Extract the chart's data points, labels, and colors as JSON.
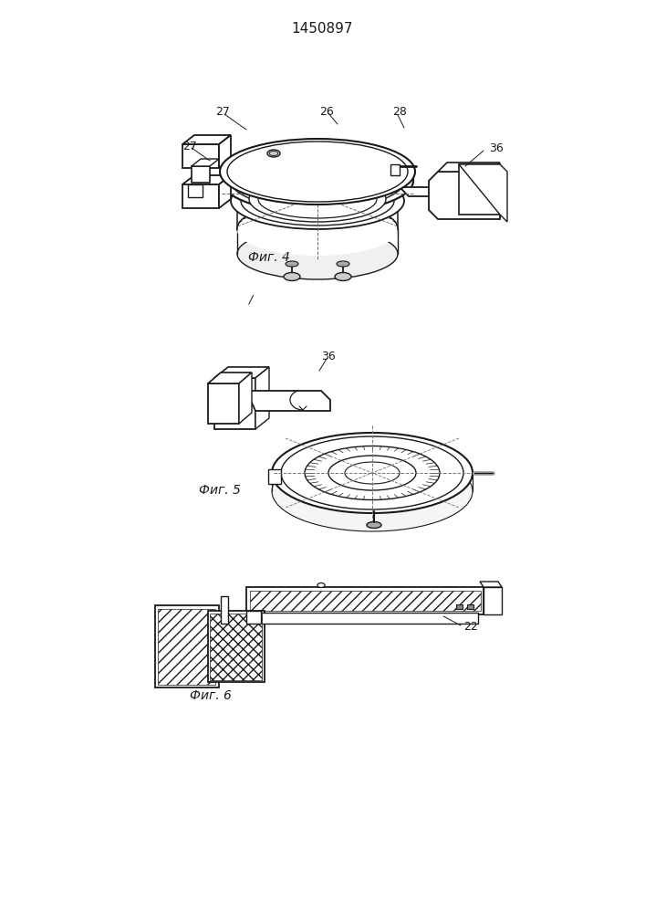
{
  "title": "1450897",
  "title_fontsize": 11,
  "background_color": "#ffffff",
  "line_color": "#1a1a1a",
  "fig4_caption": "Фиг. 4",
  "fig5_caption": "Фиг. 5",
  "fig6_caption": "Фиг. 6"
}
